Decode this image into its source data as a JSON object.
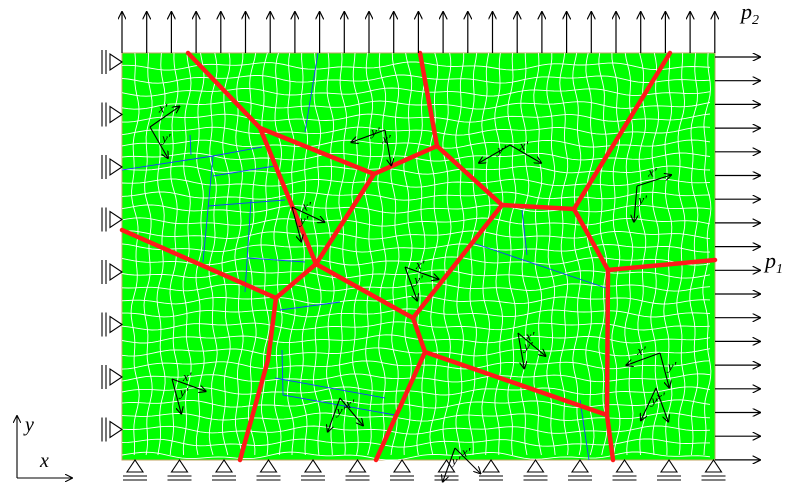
{
  "figure": {
    "load_top_label": "p",
    "load_top_sub": "2",
    "load_right_label": "p",
    "load_right_sub": "1",
    "axis_x_label": "x",
    "axis_y_label": "y",
    "grain_axis_x_label": "x'",
    "grain_axis_y_label": "y'",
    "grain_count": 13
  },
  "colors": {
    "domain_fill": "#00ff00",
    "mesh_lines": "#ffffff",
    "grain_boundaries": "#ff1a1a",
    "subgrain_lines": "#1c3cff",
    "ink": "#000000"
  },
  "icons": [
    "arrow-icon",
    "roller-support-icon",
    "pin-support-icon"
  ]
}
